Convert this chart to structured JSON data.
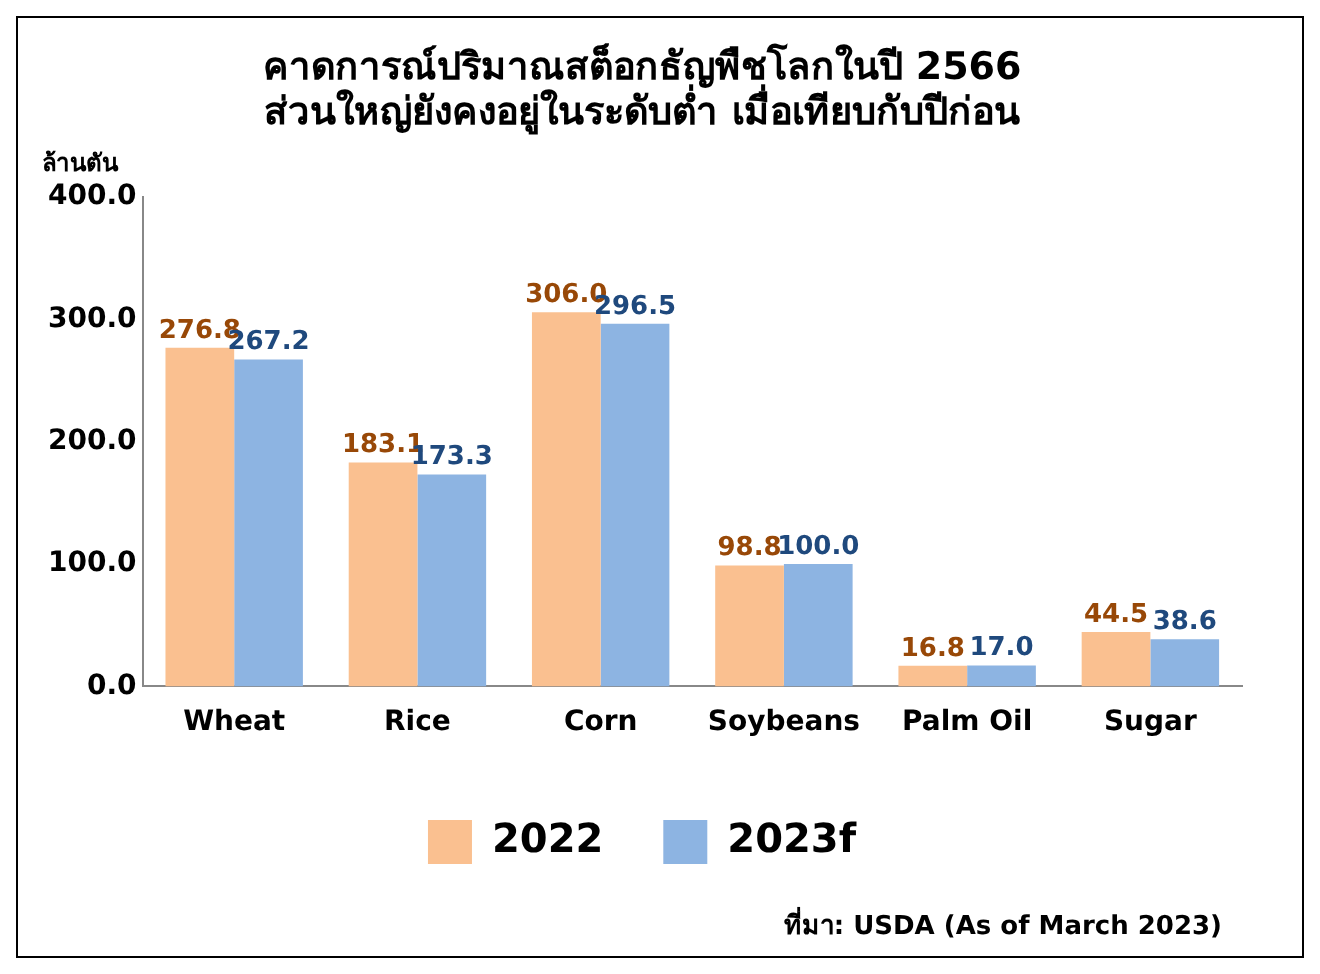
{
  "chart_data": {
    "type": "bar",
    "title": "คาดการณ์ปริมาณสต็อกธัญพืชโลกในปี 2566\nส่วนใหญ่ยังคงอยู่ในระดับต่ำ เมื่อเทียบกับปีก่อน",
    "ylabel": "ล้านตัน",
    "categories": [
      "Wheat",
      "Rice",
      "Corn",
      "Soybeans",
      "Palm Oil",
      "Sugar"
    ],
    "series": [
      {
        "name": "2022",
        "color": "#fac090",
        "values": [
          276.8,
          183.1,
          306.0,
          98.8,
          16.8,
          44.5
        ],
        "value_labels": [
          "276.8",
          "183.1",
          "306.0",
          "98.8",
          "16.8",
          "44.5"
        ]
      },
      {
        "name": "2023f",
        "color": "#8db4e2",
        "values": [
          267.2,
          173.3,
          296.5,
          100.0,
          17.0,
          38.6
        ],
        "value_labels": [
          "267.2",
          "173.3",
          "296.5",
          "100.0",
          "17.0",
          "38.6"
        ]
      }
    ],
    "ylim": [
      0,
      400
    ],
    "yticks": [
      {
        "value": 0,
        "label": "0.0"
      },
      {
        "value": 100,
        "label": "100.0"
      },
      {
        "value": 200,
        "label": "200.0"
      },
      {
        "value": 300,
        "label": "300.0"
      },
      {
        "value": 400,
        "label": "400.0"
      }
    ],
    "grid": false,
    "legend": "bottom",
    "annotations": [
      "ที่มา: USDA (As of March 2023)"
    ]
  }
}
